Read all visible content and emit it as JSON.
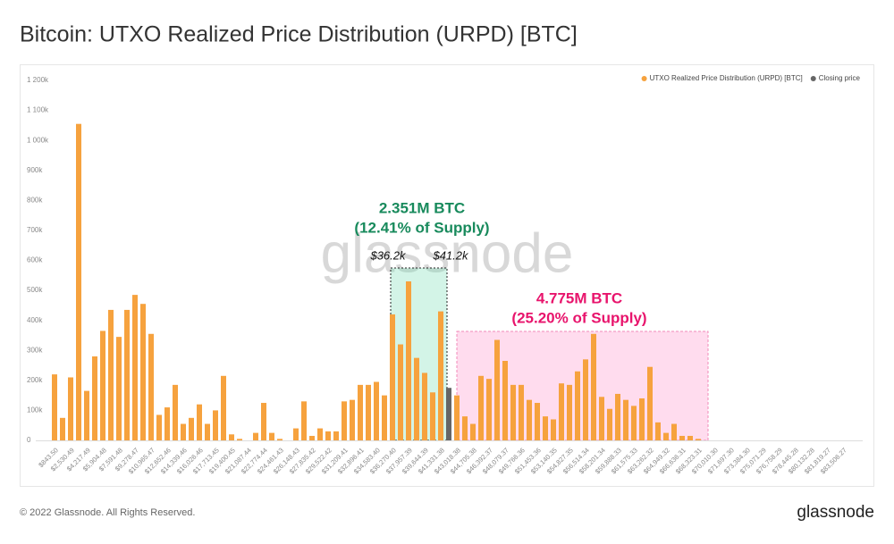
{
  "chart_data": {
    "type": "bar",
    "title": "Bitcoin: UTXO Realized Price Distribution (URPD) [BTC]",
    "categories": [
      "$843.50",
      null,
      "$2,530.49",
      null,
      "$4,217.49",
      null,
      "$5,904.48",
      null,
      "$7,591.48",
      null,
      "$9,278.47",
      null,
      "$10,965.47",
      null,
      "$12,652.46",
      null,
      "$14,339.46",
      null,
      "$16,026.46",
      null,
      "$17,713.45",
      null,
      "$19,400.45",
      null,
      "$21,087.44",
      null,
      "$22,774.44",
      null,
      "$24,461.43",
      null,
      "$26,148.43",
      null,
      "$27,835.42",
      null,
      "$29,522.42",
      null,
      "$31,209.41",
      null,
      "$32,896.41",
      null,
      "$34,583.40",
      null,
      "$36,270.40",
      null,
      "$37,957.39",
      null,
      "$39,644.39",
      null,
      "$41,331.38",
      null,
      "$43,018.38",
      null,
      "$44,705.38",
      null,
      "$46,392.37",
      null,
      "$48,079.37",
      null,
      "$49,766.36",
      null,
      "$51,453.36",
      null,
      "$53,140.35",
      null,
      "$54,827.35",
      null,
      "$56,514.34",
      null,
      "$58,201.34",
      null,
      "$59,888.33",
      null,
      "$61,575.33",
      null,
      "$63,262.32",
      null,
      "$64,949.32",
      null,
      "$66,636.31",
      null,
      "$68,323.31",
      null,
      "$70,010.30",
      null,
      "$71,697.30",
      null,
      "$73,384.30",
      null,
      "$75,071.29",
      null,
      "$76,758.29",
      null,
      "$78,445.28",
      null,
      "$80,132.28",
      null,
      "$81,819.27",
      null,
      "$83,506.27",
      null
    ],
    "series": [
      {
        "name": "UTXO Realized Price Distribution (URPD) [BTC]",
        "color": "#f6a23e",
        "values": [
          220000,
          75000,
          210000,
          1055000,
          165000,
          280000,
          365000,
          435000,
          345000,
          435000,
          485000,
          455000,
          355000,
          85000,
          110000,
          185000,
          55000,
          75000,
          120000,
          55000,
          100000,
          215000,
          20000,
          5000,
          0,
          25000,
          125000,
          25000,
          5000,
          0,
          40000,
          130000,
          15000,
          40000,
          30000,
          30000,
          130000,
          135000,
          185000,
          185000,
          195000,
          150000,
          420000,
          320000,
          530000,
          275000,
          225000,
          160000,
          430000,
          null,
          150000,
          80000,
          55000,
          215000,
          205000,
          335000,
          265000,
          185000,
          185000,
          135000,
          125000,
          80000,
          70000,
          190000,
          185000,
          230000,
          270000,
          355000,
          145000,
          105000,
          155000,
          135000,
          115000,
          140000,
          245000,
          60000,
          25000,
          55000,
          15000,
          15000,
          5000,
          0,
          0,
          0,
          0,
          0,
          0,
          0,
          0,
          0,
          0,
          0,
          0,
          0,
          0,
          0,
          0,
          0,
          0,
          0
        ]
      },
      {
        "name": "Closing price",
        "color": "#666666",
        "values": [
          null,
          null,
          null,
          null,
          null,
          null,
          null,
          null,
          null,
          null,
          null,
          null,
          null,
          null,
          null,
          null,
          null,
          null,
          null,
          null,
          null,
          null,
          null,
          null,
          null,
          null,
          null,
          null,
          null,
          null,
          null,
          null,
          null,
          null,
          null,
          null,
          null,
          null,
          null,
          null,
          null,
          null,
          null,
          null,
          null,
          null,
          null,
          null,
          null,
          175000,
          null,
          null,
          null,
          null,
          null,
          null,
          null,
          null,
          null,
          null,
          null,
          null,
          null,
          null,
          null,
          null,
          null,
          null,
          null,
          null,
          null,
          null,
          null,
          null,
          null,
          null,
          null,
          null,
          null,
          null,
          null,
          null,
          null,
          null,
          null,
          null,
          null,
          null,
          null,
          null,
          null,
          null,
          null,
          null,
          null,
          null,
          null,
          null,
          null,
          null
        ]
      }
    ],
    "ylim": [
      0,
      1200000
    ],
    "yticks": [
      0,
      {
        "value": 100000,
        "label": "100k"
      },
      {
        "value": 200000,
        "label": "200k"
      },
      {
        "value": 300000,
        "label": "300k"
      },
      {
        "value": 400000,
        "label": "400k"
      },
      {
        "value": 500000,
        "label": "500k"
      },
      {
        "value": 600000,
        "label": "600k"
      },
      {
        "value": 700000,
        "label": "700k"
      },
      {
        "value": 800000,
        "label": "800k"
      },
      {
        "value": 900000,
        "label": "900k"
      },
      {
        "value": 1000000,
        "label": "1 000k"
      },
      {
        "value": 1100000,
        "label": "1 100k"
      },
      {
        "value": 1200000,
        "label": "1 200k"
      }
    ],
    "grid": false,
    "legend": "top-right",
    "annotations": [
      "2.351M BTC",
      "(12.41% of Supply)",
      "$36.2k",
      "$41.2k",
      "4.775M BTC",
      "(25.20% of Supply)"
    ],
    "watermark": "glassnode"
  },
  "footer": {
    "copyright": "© 2022 Glassnode. All Rights Reserved.",
    "logo": "glassnode"
  }
}
